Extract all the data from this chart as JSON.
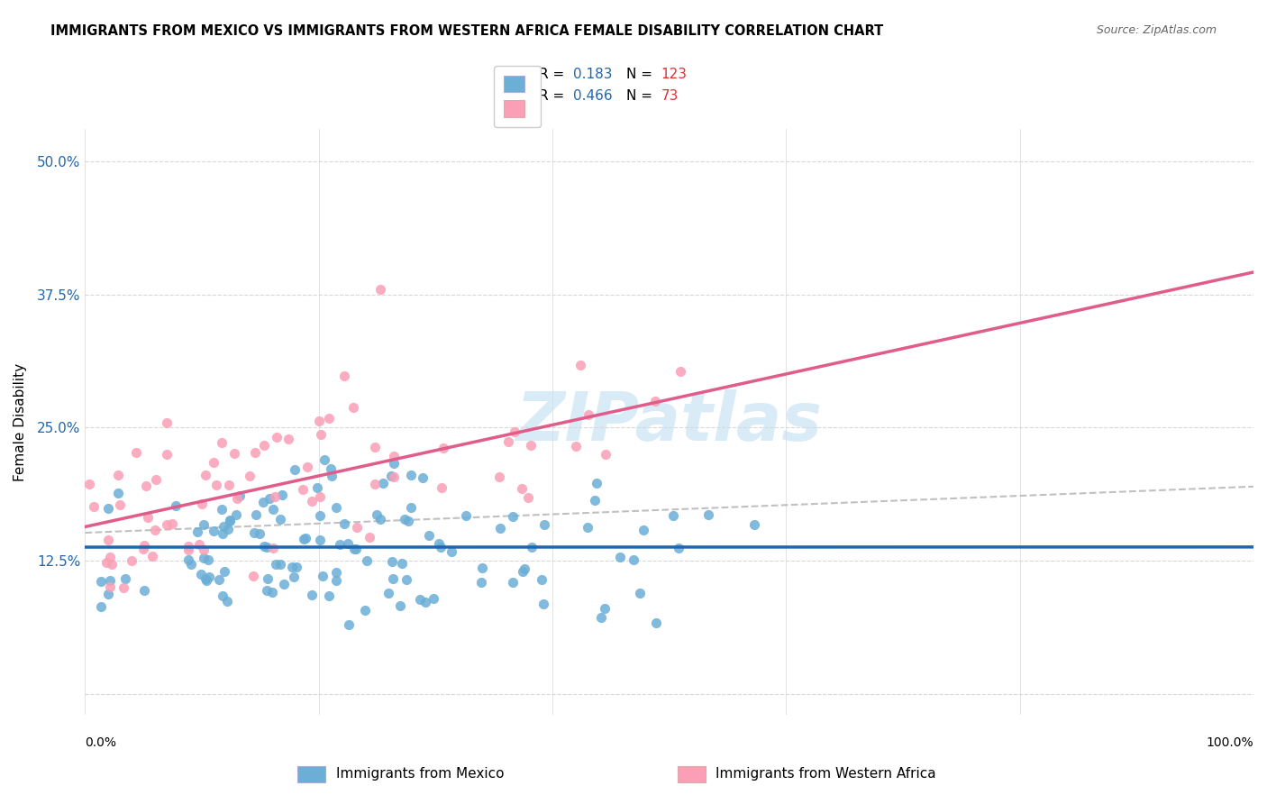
{
  "title": "IMMIGRANTS FROM MEXICO VS IMMIGRANTS FROM WESTERN AFRICA FEMALE DISABILITY CORRELATION CHART",
  "source": "Source: ZipAtlas.com",
  "ylabel": "Female Disability",
  "watermark": "ZIPatlas",
  "legend_r1": "0.183",
  "legend_n1": "123",
  "legend_r2": "0.466",
  "legend_n2": "73",
  "color_mexico": "#6baed6",
  "color_w_africa": "#fa9fb5",
  "color_line_mexico": "#2166ac",
  "color_line_w_africa": "#e05c8a",
  "color_trend_dashed": "#c0c0c0",
  "xlim": [
    0.0,
    1.0
  ],
  "ylim": [
    -0.02,
    0.53
  ]
}
